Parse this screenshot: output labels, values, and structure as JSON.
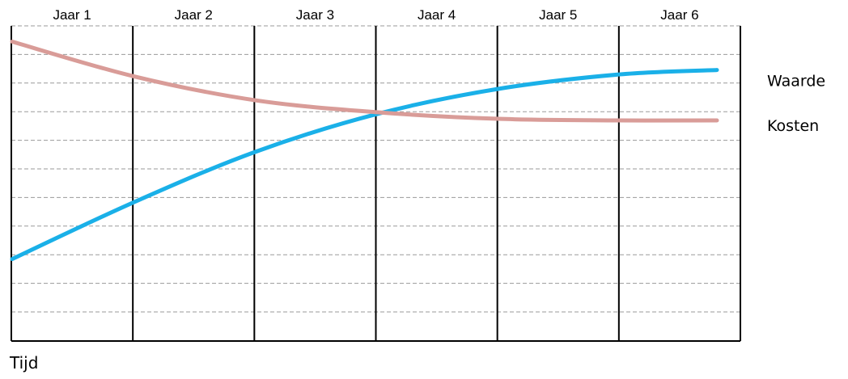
{
  "chart_data": {
    "type": "line",
    "categories": [
      "Jaar 1",
      "Jaar 2",
      "Jaar 3",
      "Jaar 4",
      "Jaar 5",
      "Jaar 6"
    ],
    "xlabel": "Tijd",
    "ylabel": "",
    "title": "",
    "y_axis_values_printed": false,
    "grid": {
      "horizontal": "dashed",
      "vertical": "solid",
      "horizontal_lines": 10
    },
    "legend_placement": "right (labels placed beside line ends)",
    "series": [
      {
        "name": "Waarde",
        "color": "#1ab0e8",
        "x": [
          0,
          1,
          2,
          3,
          4,
          5,
          5.8
        ],
        "y": [
          0.26,
          0.44,
          0.6,
          0.72,
          0.8,
          0.846,
          0.86
        ]
      },
      {
        "name": "Kosten",
        "color": "#d99c98",
        "x": [
          0,
          1,
          2,
          3,
          4,
          5,
          5.8
        ],
        "y": [
          0.95,
          0.84,
          0.764,
          0.726,
          0.705,
          0.7,
          0.7
        ]
      }
    ],
    "ylim": [
      0,
      1
    ]
  }
}
